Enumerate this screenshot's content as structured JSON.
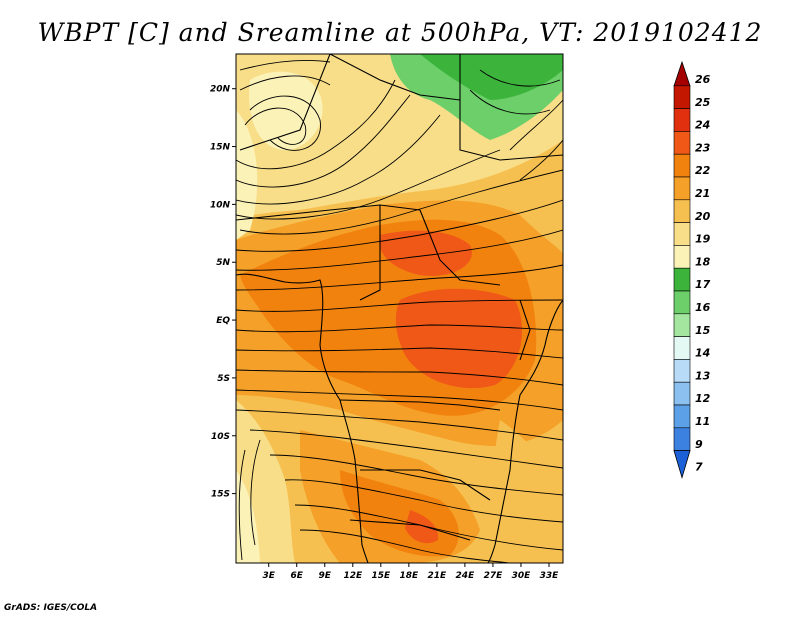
{
  "title": "WBPT [C] and Sreamline at 500hPa, VT: 2019102412",
  "footer": "GrADS: IGES/COLA",
  "map": {
    "lat_range": [
      -21,
      23
    ],
    "lon_range": [
      -0.5,
      34.5
    ],
    "lat_ticks": [
      {
        "value": 20,
        "label": "20N"
      },
      {
        "value": 15,
        "label": "15N"
      },
      {
        "value": 10,
        "label": "10N"
      },
      {
        "value": 5,
        "label": "5N"
      },
      {
        "value": 0,
        "label": "EQ"
      },
      {
        "value": -5,
        "label": "5S"
      },
      {
        "value": -10,
        "label": "10S"
      },
      {
        "value": -15,
        "label": "15S"
      }
    ],
    "lon_ticks": [
      {
        "value": 3,
        "label": "3E"
      },
      {
        "value": 6,
        "label": "6E"
      },
      {
        "value": 9,
        "label": "9E"
      },
      {
        "value": 12,
        "label": "12E"
      },
      {
        "value": 15,
        "label": "15E"
      },
      {
        "value": 18,
        "label": "18E"
      },
      {
        "value": 21,
        "label": "21E"
      },
      {
        "value": 24,
        "label": "24E"
      },
      {
        "value": 27,
        "label": "27E"
      },
      {
        "value": 30,
        "label": "30E"
      },
      {
        "value": 33,
        "label": "33E"
      }
    ]
  },
  "colorbar": {
    "labels": [
      "26",
      "25",
      "24",
      "23",
      "22",
      "21",
      "20",
      "19",
      "18",
      "17",
      "16",
      "15",
      "14",
      "13",
      "12",
      "11",
      "9",
      "7"
    ],
    "colors": {
      "26": "#a50000",
      "25": "#c41700",
      "24": "#e03010",
      "23": "#f05818",
      "22": "#f2820e",
      "21": "#f5a028",
      "20": "#f6c050",
      "19": "#f8de88",
      "18": "#fbf2b8",
      "17": "#3cb43c",
      "16": "#6ccf6a",
      "15": "#a4e6a0",
      "14": "#e4f8f4",
      "13": "#b8dcf8",
      "12": "#8cc0f0",
      "11": "#5ca0e8",
      "9": "#3c80e0",
      "7": "#1c60d8"
    }
  },
  "colors": {
    "ocean_lon": "#f8de88",
    "yellow_light": "#fbf2b8"
  }
}
